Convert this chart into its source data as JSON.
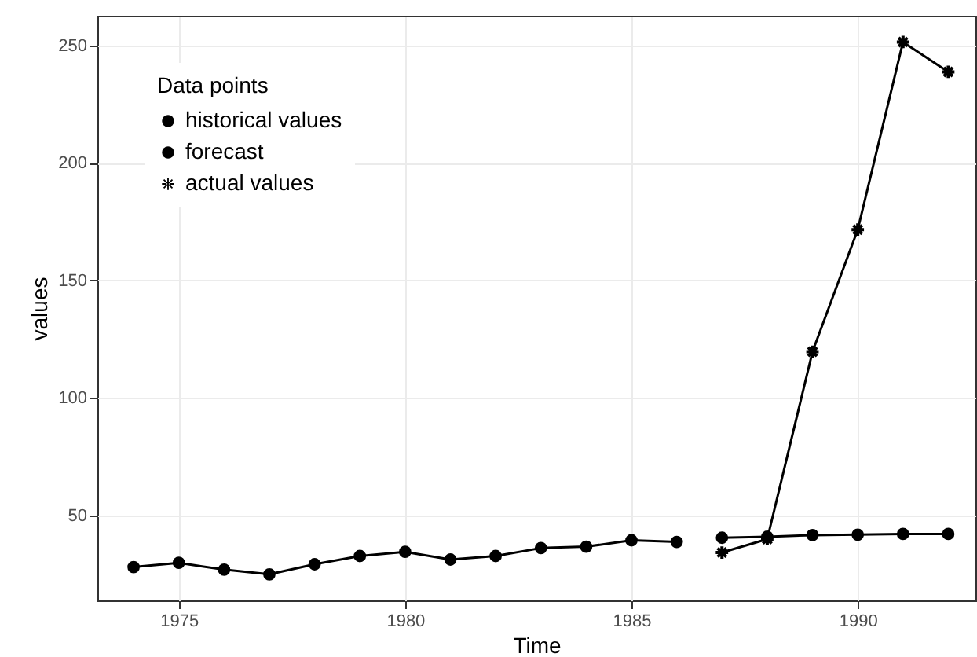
{
  "chart_data": {
    "type": "line",
    "xlabel": "Time",
    "ylabel": "values",
    "legend_title": "Data points",
    "legend": "top left",
    "grid": true,
    "xlim": [
      1973.2,
      1992.6
    ],
    "xticks": [
      1975,
      1980,
      1985,
      1990
    ],
    "ylim": [
      13.7,
      262.7
    ],
    "yticks": [
      50,
      100,
      150,
      200,
      250
    ],
    "series": [
      {
        "name": "historical values",
        "color": "#000000",
        "marker": "circle",
        "x": [
          1974,
          1975,
          1976,
          1977,
          1978,
          1979,
          1980,
          1981,
          1982,
          1983,
          1984,
          1985,
          1986
        ],
        "values": [
          27.9,
          29.7,
          26.8,
          24.8,
          29.1,
          32.6,
          34.4,
          31.1,
          32.6,
          36.0,
          36.6,
          39.3,
          38.6
        ]
      },
      {
        "name": "forecast",
        "color": "#000000",
        "marker": "circle",
        "x": [
          1987,
          1988,
          1989,
          1990,
          1991,
          1992
        ],
        "values": [
          40.4,
          40.8,
          41.5,
          41.7,
          42.0,
          42.0
        ]
      },
      {
        "name": "actual values",
        "color": "#000000",
        "marker": "cross",
        "x": [
          1987,
          1988,
          1989,
          1990,
          1991,
          1992
        ],
        "values": [
          34.1,
          39.8,
          119.6,
          171.6,
          251.5,
          238.8
        ]
      }
    ]
  }
}
